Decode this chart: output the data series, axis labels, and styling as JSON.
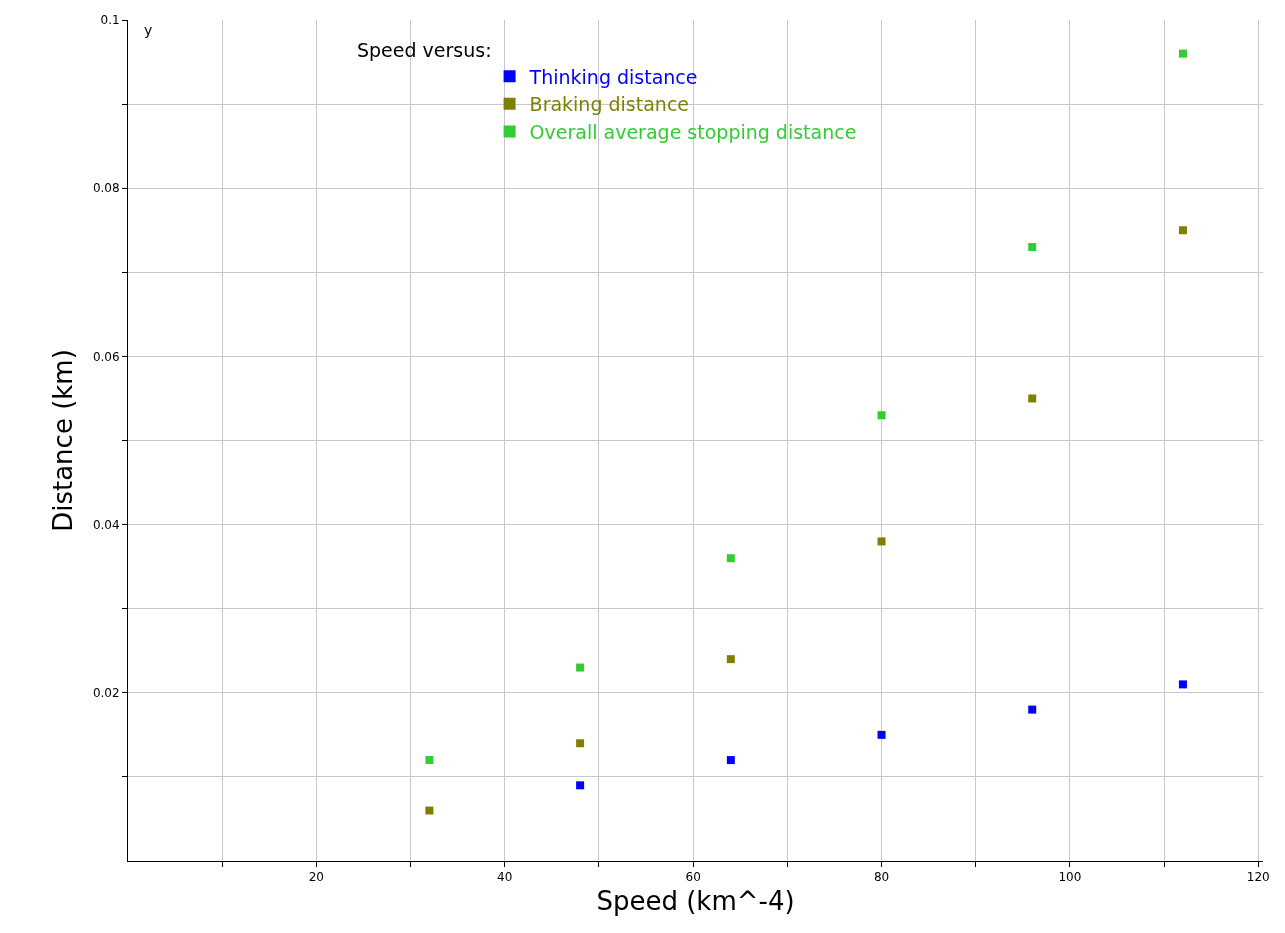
{
  "chart_data": {
    "type": "scatter",
    "xlabel": "Speed (km^-4)",
    "ylabel": "Distance (km)",
    "legend_title": "Speed versus:",
    "legend": "top left",
    "marker": "square",
    "grid": true,
    "x": [
      32,
      48,
      64,
      80,
      96,
      112
    ],
    "series": [
      {
        "name": "Thinking distance",
        "color": "#0000ff",
        "values": [
          null,
          0.009,
          0.012,
          0.015,
          0.018,
          0.021
        ]
      },
      {
        "name": "Braking distance",
        "color": "#808000",
        "values": [
          0.006,
          0.014,
          0.024,
          0.038,
          0.055,
          0.075
        ]
      },
      {
        "name": "Overall average stopping distance",
        "color": "#33cc33",
        "values": [
          0.012,
          0.023,
          0.036,
          0.053,
          0.073,
          0.096
        ]
      }
    ],
    "xlim": [
      0,
      120.5
    ],
    "ylim": [
      0,
      0.1
    ],
    "xticks": [
      {
        "value": 10,
        "label": null
      },
      20,
      {
        "value": 30,
        "label": null
      },
      40,
      {
        "value": 50,
        "label": null
      },
      60,
      {
        "value": 70,
        "label": null
      },
      80,
      {
        "value": 90,
        "label": null
      },
      100,
      {
        "value": 110,
        "label": null
      },
      120
    ],
    "yticks": [
      {
        "value": 0.01,
        "label": null
      },
      0.02,
      {
        "value": 0.03,
        "label": null
      },
      0.04,
      {
        "value": 0.05,
        "label": null
      },
      0.06,
      {
        "value": 0.07,
        "label": null
      },
      0.08,
      {
        "value": 0.09,
        "label": null
      },
      0.1
    ],
    "annotations": [
      "y"
    ]
  }
}
